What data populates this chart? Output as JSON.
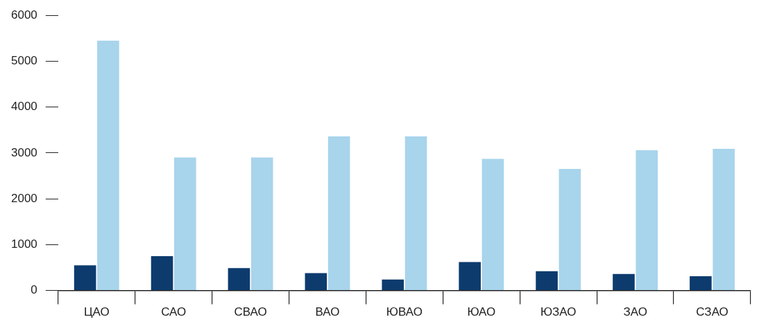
{
  "chart_data": {
    "type": "bar",
    "categories": [
      "ЦАО",
      "САО",
      "СВАО",
      "ВАО",
      "ЮВАО",
      "ЮАО",
      "ЮЗАО",
      "ЗАО",
      "СЗАО"
    ],
    "series": [
      {
        "color": "#0d3b6e",
        "values": [
          550,
          750,
          490,
          380,
          240,
          620,
          420,
          360,
          310
        ]
      },
      {
        "color": "#a8d4ec",
        "values": [
          5450,
          2900,
          2900,
          3360,
          3360,
          2870,
          2650,
          3060,
          3090
        ]
      }
    ],
    "ylim": [
      0,
      6000
    ],
    "yticks": [
      0,
      1000,
      2000,
      3000,
      4000,
      5000,
      6000
    ],
    "grid": false,
    "legend": false
  }
}
